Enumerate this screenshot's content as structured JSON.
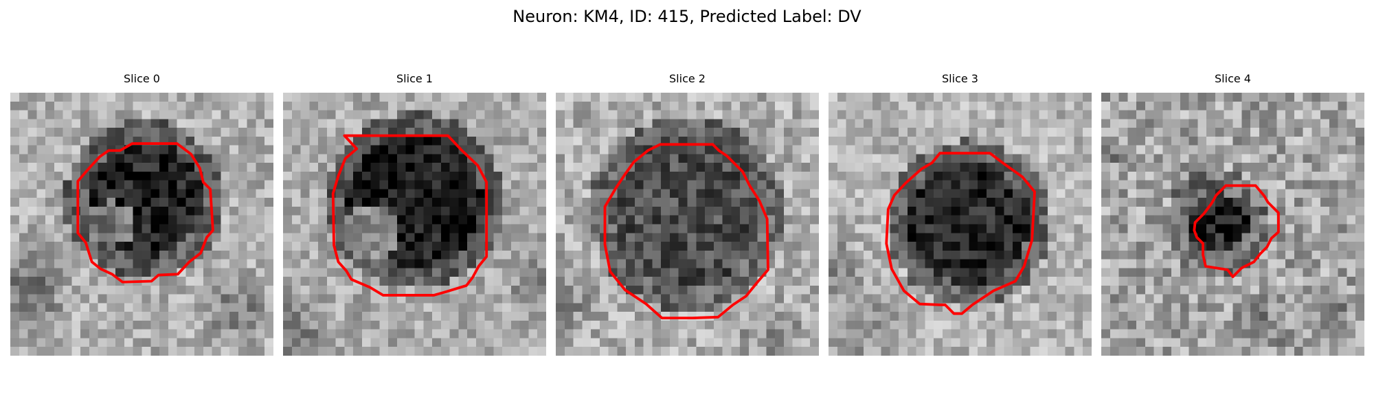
{
  "figure": {
    "title": "Neuron: KM4, ID: 415, Predicted Label: DV"
  },
  "panels": [
    {
      "title": "Slice 0"
    },
    {
      "title": "Slice 1"
    },
    {
      "title": "Slice 2"
    },
    {
      "title": "Slice 3"
    },
    {
      "title": "Slice 4"
    }
  ],
  "colors": {
    "contour": "#ff0000"
  }
}
